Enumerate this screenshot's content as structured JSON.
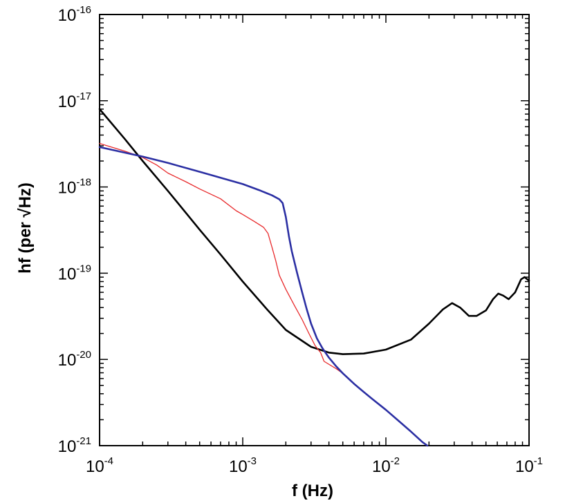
{
  "chart_data": {
    "type": "line",
    "title": "",
    "xlabel": "f (Hz)",
    "ylabel": "hf (per √Hz)",
    "xscale": "log",
    "yscale": "log",
    "xlim": [
      0.0001,
      0.1
    ],
    "ylim": [
      1e-21,
      1e-16
    ],
    "grid": false,
    "legend": "none",
    "x_ticks": [
      {
        "base": "10",
        "exp": "-4",
        "value": 0.0001
      },
      {
        "base": "10",
        "exp": "-3",
        "value": 0.001
      },
      {
        "base": "10",
        "exp": "-2",
        "value": 0.01
      },
      {
        "base": "10",
        "exp": "-1",
        "value": 0.1
      }
    ],
    "y_ticks": [
      {
        "base": "10",
        "exp": "-21",
        "value": 1e-21
      },
      {
        "base": "10",
        "exp": "-20",
        "value": 1e-20
      },
      {
        "base": "10",
        "exp": "-19",
        "value": 1e-19
      },
      {
        "base": "10",
        "exp": "-18",
        "value": 1e-18
      },
      {
        "base": "10",
        "exp": "-17",
        "value": 1e-17
      },
      {
        "base": "10",
        "exp": "-16",
        "value": 1e-16
      }
    ],
    "series": [
      {
        "color": "#000000",
        "points": [
          [
            0.0001,
            8e-18
          ],
          [
            0.00015,
            3.6e-18
          ],
          [
            0.0002,
            2e-18
          ],
          [
            0.0003,
            9e-19
          ],
          [
            0.0005,
            3.2e-19
          ],
          [
            0.0007,
            1.65e-19
          ],
          [
            0.001,
            8e-20
          ],
          [
            0.0015,
            3.7e-20
          ],
          [
            0.002,
            2.2e-20
          ],
          [
            0.003,
            1.4e-20
          ],
          [
            0.004,
            1.2e-20
          ],
          [
            0.005,
            1.15e-20
          ],
          [
            0.007,
            1.17e-20
          ],
          [
            0.01,
            1.3e-20
          ],
          [
            0.015,
            1.7e-20
          ],
          [
            0.02,
            2.6e-20
          ],
          [
            0.025,
            3.8e-20
          ],
          [
            0.029,
            4.5e-20
          ],
          [
            0.033,
            4e-20
          ],
          [
            0.038,
            3.2e-20
          ],
          [
            0.043,
            3.2e-20
          ],
          [
            0.05,
            3.7e-20
          ],
          [
            0.056,
            5e-20
          ],
          [
            0.061,
            5.8e-20
          ],
          [
            0.066,
            5.5e-20
          ],
          [
            0.072,
            5e-20
          ],
          [
            0.08,
            6e-20
          ],
          [
            0.088,
            8.5e-20
          ],
          [
            0.093,
            9e-20
          ],
          [
            0.1,
            8.2e-20
          ]
        ]
      },
      {
        "color": "#2b2fa3",
        "points": [
          [
            0.0001,
            2.9e-18
          ],
          [
            0.0002,
            2.25e-18
          ],
          [
            0.0003,
            1.9e-18
          ],
          [
            0.0005,
            1.5e-18
          ],
          [
            0.0007,
            1.28e-18
          ],
          [
            0.001,
            1.08e-18
          ],
          [
            0.0013,
            9.2e-19
          ],
          [
            0.0016,
            8e-19
          ],
          [
            0.0018,
            7.2e-19
          ],
          [
            0.0019,
            6.5e-19
          ],
          [
            0.002,
            4.5e-19
          ],
          [
            0.0021,
            2.7e-19
          ],
          [
            0.0022,
            1.8e-19
          ],
          [
            0.0024,
            1e-19
          ],
          [
            0.0026,
            6e-20
          ],
          [
            0.0028,
            3.8e-20
          ],
          [
            0.003,
            2.6e-20
          ],
          [
            0.0033,
            1.75e-20
          ],
          [
            0.0036,
            1.35e-20
          ],
          [
            0.004,
            1.05e-20
          ],
          [
            0.0045,
            8.3e-21
          ],
          [
            0.005,
            6.9e-21
          ],
          [
            0.006,
            5.2e-21
          ],
          [
            0.007,
            4.2e-21
          ],
          [
            0.008,
            3.5e-21
          ],
          [
            0.01,
            2.6e-21
          ],
          [
            0.012,
            2e-21
          ],
          [
            0.015,
            1.45e-21
          ],
          [
            0.018,
            1.1e-21
          ],
          [
            0.0195,
            1e-21
          ]
        ]
      },
      {
        "color": "#e8292b",
        "points": [
          [
            0.0001,
            3.2e-18
          ],
          [
            0.00015,
            2.6e-18
          ],
          [
            0.0002,
            2.2e-18
          ],
          [
            0.00025,
            1.8e-18
          ],
          [
            0.0003,
            1.45e-18
          ],
          [
            0.0004,
            1.15e-18
          ],
          [
            0.0005,
            9.5e-19
          ],
          [
            0.0007,
            7.3e-19
          ],
          [
            0.0009,
            5.3e-19
          ],
          [
            0.001,
            4.8e-19
          ],
          [
            0.0012,
            4e-19
          ],
          [
            0.0014,
            3.4e-19
          ],
          [
            0.0015,
            2.9e-19
          ],
          [
            0.0016,
            2e-19
          ],
          [
            0.0017,
            1.4e-19
          ],
          [
            0.0018,
            9.5e-20
          ],
          [
            0.002,
            6.5e-20
          ],
          [
            0.0023,
            4.2e-20
          ],
          [
            0.0026,
            2.9e-20
          ],
          [
            0.0029,
            2e-20
          ],
          [
            0.0032,
            1.45e-20
          ],
          [
            0.0035,
            1.2e-20
          ],
          [
            0.0037,
            9.5e-21
          ],
          [
            0.0045,
            7.8e-21
          ],
          [
            0.005,
            6.9e-21
          ],
          [
            0.006,
            5.2e-21
          ],
          [
            0.007,
            4.2e-21
          ],
          [
            0.008,
            3.5e-21
          ],
          [
            0.01,
            2.6e-21
          ],
          [
            0.012,
            2e-21
          ]
        ]
      }
    ]
  }
}
